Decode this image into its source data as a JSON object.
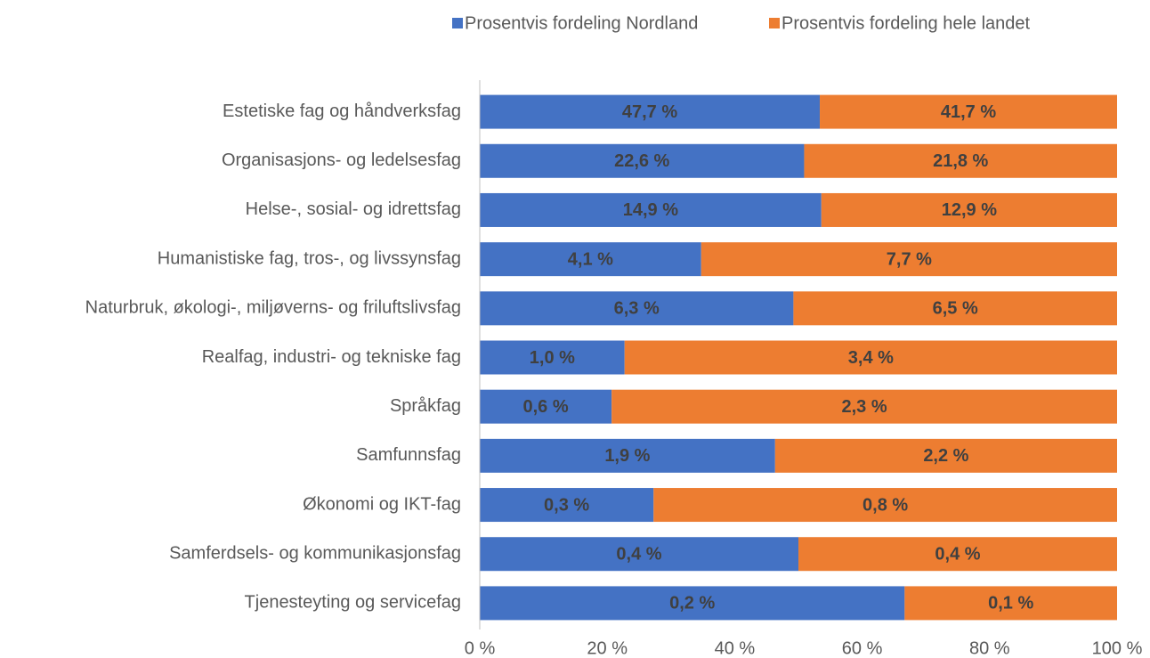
{
  "chart_data": {
    "type": "bar",
    "orientation": "horizontal",
    "stacking": "percent",
    "categories": [
      "Estetiske fag og håndverksfag",
      "Organisasjons- og ledelsesfag",
      "Helse-, sosial- og idrettsfag",
      "Humanistiske fag, tros-, og livssynsfag",
      "Naturbruk, økologi-, miljøverns- og friluftslivsfag",
      "Realfag, industri- og tekniske fag",
      "Språkfag",
      "Samfunnsfag",
      "Økonomi og IKT-fag",
      "Samferdsels- og kommunikasjonsfag",
      "Tjenesteyting og servicefag"
    ],
    "series": [
      {
        "name": "Prosentvis fordeling Nordland",
        "color": "#4472c4",
        "values": [
          47.7,
          22.6,
          14.9,
          4.1,
          6.3,
          1.0,
          0.6,
          1.9,
          0.3,
          0.4,
          0.2
        ],
        "value_labels": [
          "47,7 %",
          "22,6 %",
          "14,9 %",
          "4,1 %",
          "6,3 %",
          "1,0 %",
          "0,6 %",
          "1,9 %",
          "0,3 %",
          "0,4 %",
          "0,2 %"
        ]
      },
      {
        "name": "Prosentvis fordeling hele landet",
        "color": "#ed7d31",
        "values": [
          41.7,
          21.8,
          12.9,
          7.7,
          6.5,
          3.4,
          2.3,
          2.2,
          0.8,
          0.4,
          0.1
        ],
        "value_labels": [
          "41,7 %",
          "21,8 %",
          "12,9 %",
          "7,7 %",
          "6,5 %",
          "3,4 %",
          "2,3 %",
          "2,2 %",
          "0,8 %",
          "0,4 %",
          "0,1 %"
        ]
      }
    ],
    "xlim": [
      0,
      100
    ],
    "xticks": [
      {
        "value": 0,
        "label": "0 %"
      },
      {
        "value": 20,
        "label": "20 %"
      },
      {
        "value": 40,
        "label": "40 %"
      },
      {
        "value": 60,
        "label": "60 %"
      },
      {
        "value": 80,
        "label": "80 %"
      },
      {
        "value": 100,
        "label": "100 %"
      }
    ],
    "grid": false,
    "legend": "top"
  }
}
